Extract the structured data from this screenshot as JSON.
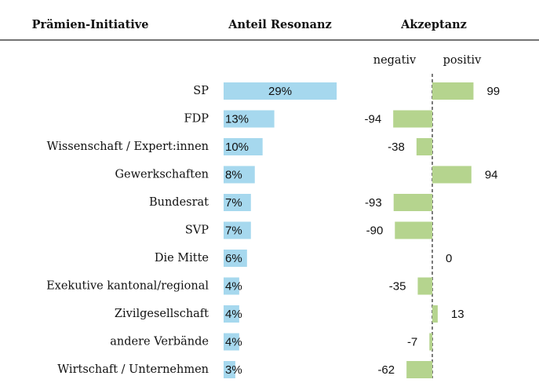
{
  "chart_data": {
    "type": "bar",
    "category_label": "Prämien-Initiative",
    "subcolumns": [
      "negativ",
      "positiv"
    ],
    "categories": [
      "SP",
      "FDP",
      "Wissenschaft / Expert:innen",
      "Gewerkschaften",
      "Bundesrat",
      "SVP",
      "Die Mitte",
      "Exekutive kantonal/regional",
      "Zivilgesellschaft",
      "andere Verbände",
      "Wirtschaft / Unternehmen"
    ],
    "series": [
      {
        "name": "Anteil Resonanz",
        "color": "#a6d8ee",
        "values": [
          29,
          13,
          10,
          8,
          7,
          7,
          6,
          4,
          4,
          4,
          3
        ],
        "value_labels": [
          "29%",
          "13%",
          "10%",
          "8%",
          "7%",
          "7%",
          "6%",
          "4%",
          "4%",
          "4%",
          "3%"
        ]
      },
      {
        "name": "Akzeptanz",
        "color": "#b5d48e",
        "values": [
          99,
          -94,
          -38,
          94,
          -93,
          -90,
          0,
          -35,
          13,
          -7,
          -62
        ]
      }
    ]
  }
}
